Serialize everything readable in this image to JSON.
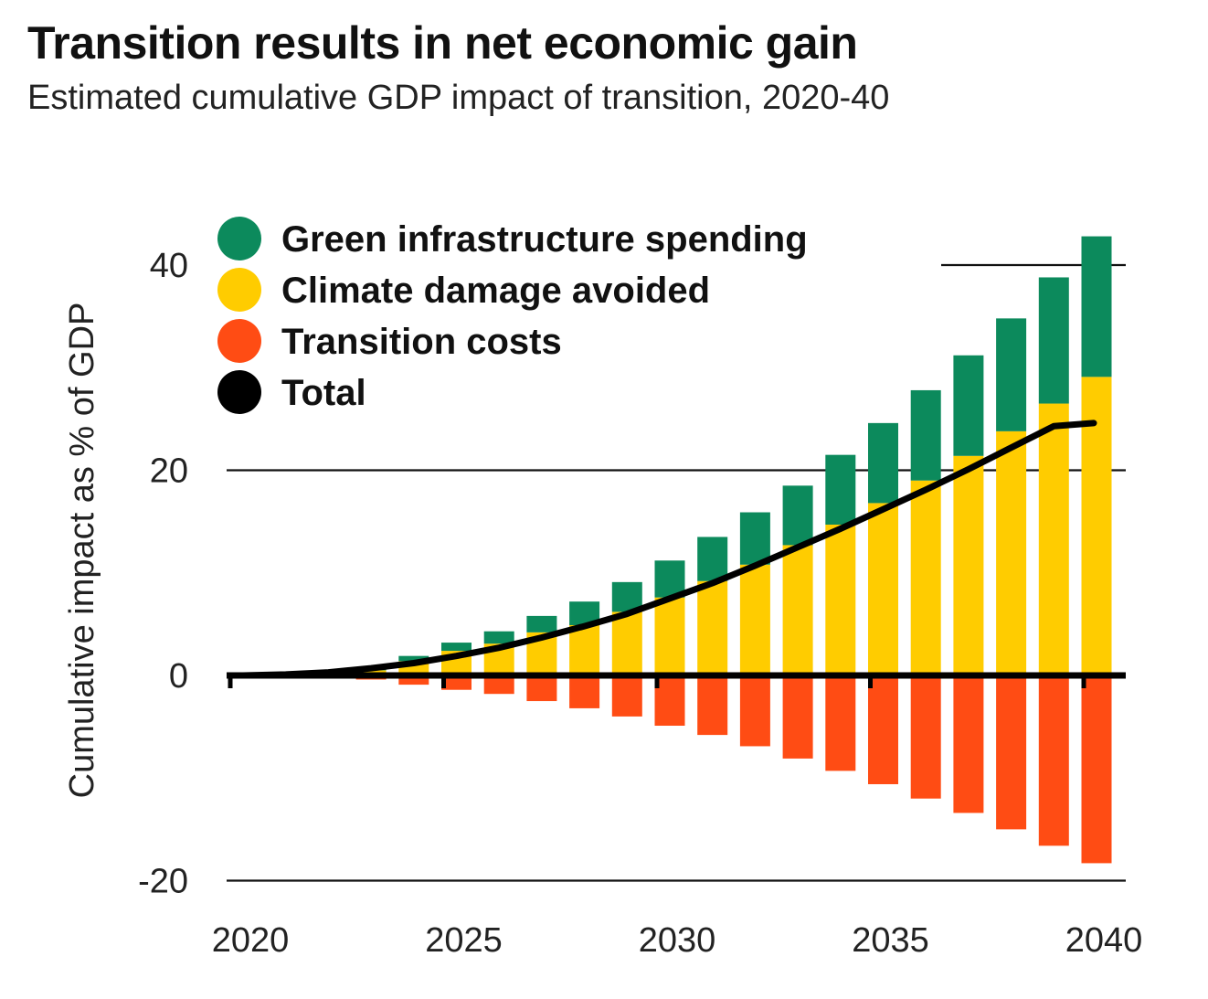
{
  "chart_data": {
    "type": "bar",
    "title": "Transition results in net economic gain",
    "subtitle": "Estimated cumulative GDP impact of transition, 2020-40",
    "xlabel": "",
    "ylabel": "Cumulative impact as % of GDP",
    "ylim": [
      -20,
      45
    ],
    "xlim": [
      2020,
      2040
    ],
    "yticks": [
      -20,
      0,
      20,
      40
    ],
    "ytick_labels": [
      "-20",
      "0",
      "20",
      "40"
    ],
    "xticks": [
      2020,
      2025,
      2030,
      2035,
      2040
    ],
    "xtick_labels": [
      "2020",
      "2025",
      "2030",
      "2035",
      "2040"
    ],
    "legend_position": "top-left",
    "x": [
      2020,
      2021,
      2022,
      2023,
      2024,
      2025,
      2026,
      2027,
      2028,
      2029,
      2030,
      2031,
      2032,
      2033,
      2034,
      2035,
      2036,
      2037,
      2038,
      2039,
      2040
    ],
    "series": [
      {
        "name": "Green infrastructure spending",
        "color": "#0c8a5c",
        "kind": "stacked-bar-top",
        "values": [
          0,
          0,
          0,
          0.2,
          0.5,
          0.8,
          1.2,
          1.6,
          2.3,
          2.9,
          3.6,
          4.3,
          5.1,
          5.8,
          6.8,
          7.8,
          8.8,
          9.8,
          11.0,
          12.3,
          13.7
        ]
      },
      {
        "name": "Climate damage avoided",
        "color": "#ffcc00",
        "kind": "stacked-bar-base",
        "values": [
          0,
          0,
          0,
          0.5,
          1.4,
          2.4,
          3.1,
          4.2,
          4.9,
          6.2,
          7.6,
          9.2,
          10.8,
          12.7,
          14.7,
          16.8,
          19.0,
          21.4,
          23.8,
          26.5,
          29.1
        ]
      },
      {
        "name": "Transition costs",
        "color": "#ff4c14",
        "kind": "negative-bar",
        "values": [
          0,
          0,
          0,
          -0.4,
          -0.9,
          -1.4,
          -1.8,
          -2.5,
          -3.2,
          -4.0,
          -4.9,
          -5.8,
          -6.9,
          -8.1,
          -9.3,
          -10.6,
          -12.0,
          -13.4,
          -15.0,
          -16.6,
          -18.3
        ]
      },
      {
        "name": "Total",
        "color": "#000000",
        "kind": "line",
        "values": [
          0,
          0.1,
          0.3,
          0.7,
          1.2,
          1.9,
          2.7,
          3.7,
          4.8,
          6.0,
          7.5,
          9.0,
          10.7,
          12.5,
          14.3,
          16.2,
          18.1,
          20.1,
          22.2,
          24.3,
          24.6
        ]
      }
    ]
  }
}
